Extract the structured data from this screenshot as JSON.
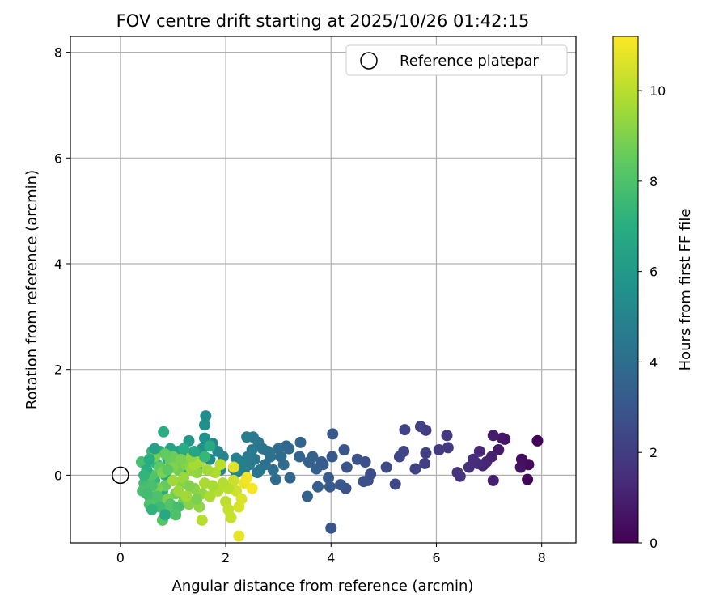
{
  "chart_data": {
    "type": "scatter",
    "title": "FOV centre drift starting at 2025/10/26 01:42:15",
    "xlabel": "Angular distance from reference (arcmin)",
    "ylabel": "Rotation from reference (arcmin)",
    "xlim": [
      -0.95,
      8.65
    ],
    "ylim": [
      -1.28,
      8.3
    ],
    "xticks": [
      "0",
      "2",
      "4",
      "6",
      "8"
    ],
    "xtick_values": [
      0,
      2,
      4,
      6,
      8
    ],
    "yticks": [
      "0",
      "2",
      "4",
      "6",
      "8"
    ],
    "ytick_values": [
      0,
      2,
      4,
      6,
      8
    ],
    "grid": true,
    "legend": {
      "placement": "top-right",
      "entries": [
        "Reference platepar"
      ]
    },
    "reference_point": {
      "x": 0,
      "y": 0
    },
    "colorbar": {
      "label": "Hours from first FF file",
      "range": [
        0,
        11.2
      ],
      "ticks": [
        "0",
        "2",
        "4",
        "6",
        "8",
        "10"
      ],
      "tick_values": [
        0,
        2,
        4,
        6,
        8,
        10
      ],
      "colormap": "viridis"
    },
    "points": [
      {
        "x": 7.92,
        "y": 0.65,
        "h": 0.1
      },
      {
        "x": 7.73,
        "y": -0.08,
        "h": 0.2
      },
      {
        "x": 7.75,
        "y": 0.2,
        "h": 0.3
      },
      {
        "x": 7.62,
        "y": 0.3,
        "h": 0.4
      },
      {
        "x": 7.6,
        "y": 0.15,
        "h": 0.5
      },
      {
        "x": 7.3,
        "y": 0.68,
        "h": 0.6
      },
      {
        "x": 7.25,
        "y": 0.7,
        "h": 0.7
      },
      {
        "x": 7.18,
        "y": 0.48,
        "h": 0.8
      },
      {
        "x": 7.08,
        "y": 0.75,
        "h": 0.9
      },
      {
        "x": 7.08,
        "y": -0.1,
        "h": 1.0
      },
      {
        "x": 7.05,
        "y": 0.35,
        "h": 1.05
      },
      {
        "x": 6.95,
        "y": 0.25,
        "h": 1.1
      },
      {
        "x": 6.88,
        "y": 0.18,
        "h": 1.2
      },
      {
        "x": 6.82,
        "y": 0.45,
        "h": 1.25
      },
      {
        "x": 6.78,
        "y": 0.22,
        "h": 1.3
      },
      {
        "x": 6.7,
        "y": 0.3,
        "h": 1.4
      },
      {
        "x": 6.62,
        "y": 0.15,
        "h": 1.5
      },
      {
        "x": 6.45,
        "y": -0.02,
        "h": 1.6
      },
      {
        "x": 6.4,
        "y": 0.05,
        "h": 1.7
      },
      {
        "x": 6.2,
        "y": 0.75,
        "h": 1.8
      },
      {
        "x": 6.22,
        "y": 0.52,
        "h": 1.85
      },
      {
        "x": 6.05,
        "y": 0.48,
        "h": 1.9
      },
      {
        "x": 5.8,
        "y": 0.85,
        "h": 2.0
      },
      {
        "x": 5.8,
        "y": 0.42,
        "h": 2.05
      },
      {
        "x": 5.78,
        "y": 0.22,
        "h": 2.1
      },
      {
        "x": 5.7,
        "y": 0.92,
        "h": 2.15
      },
      {
        "x": 5.6,
        "y": 0.12,
        "h": 2.2
      },
      {
        "x": 5.4,
        "y": 0.86,
        "h": 2.25
      },
      {
        "x": 5.38,
        "y": 0.45,
        "h": 2.3
      },
      {
        "x": 5.3,
        "y": 0.35,
        "h": 2.35
      },
      {
        "x": 5.22,
        "y": -0.17,
        "h": 2.4
      },
      {
        "x": 5.05,
        "y": 0.15,
        "h": 2.5
      },
      {
        "x": 4.75,
        "y": 0.02,
        "h": 2.6
      },
      {
        "x": 4.7,
        "y": -0.1,
        "h": 2.65
      },
      {
        "x": 4.65,
        "y": 0.25,
        "h": 2.7
      },
      {
        "x": 4.62,
        "y": -0.12,
        "h": 2.75
      },
      {
        "x": 4.5,
        "y": 0.3,
        "h": 2.8
      },
      {
        "x": 4.3,
        "y": 0.15,
        "h": 2.85
      },
      {
        "x": 4.28,
        "y": -0.25,
        "h": 2.9
      },
      {
        "x": 4.25,
        "y": 0.48,
        "h": 2.95
      },
      {
        "x": 4.18,
        "y": -0.18,
        "h": 3.0
      },
      {
        "x": 4.03,
        "y": 0.78,
        "h": 3.05
      },
      {
        "x": 4.0,
        "y": -1.0,
        "h": 2.95
      },
      {
        "x": 4.02,
        "y": 0.35,
        "h": 3.1
      },
      {
        "x": 3.98,
        "y": -0.22,
        "h": 3.15
      },
      {
        "x": 3.95,
        "y": -0.05,
        "h": 3.2
      },
      {
        "x": 3.85,
        "y": 0.2,
        "h": 3.25
      },
      {
        "x": 3.82,
        "y": 0.25,
        "h": 3.3
      },
      {
        "x": 3.75,
        "y": -0.22,
        "h": 3.35
      },
      {
        "x": 3.72,
        "y": 0.12,
        "h": 3.4
      },
      {
        "x": 3.65,
        "y": 0.35,
        "h": 3.45
      },
      {
        "x": 3.58,
        "y": 0.25,
        "h": 3.5
      },
      {
        "x": 3.55,
        "y": -0.4,
        "h": 3.55
      },
      {
        "x": 3.42,
        "y": 0.62,
        "h": 3.6
      },
      {
        "x": 3.4,
        "y": 0.35,
        "h": 3.65
      },
      {
        "x": 3.22,
        "y": -0.05,
        "h": 3.7
      },
      {
        "x": 3.2,
        "y": 0.5,
        "h": 3.75
      },
      {
        "x": 3.15,
        "y": 0.55,
        "h": 3.8
      },
      {
        "x": 3.1,
        "y": 0.2,
        "h": 3.85
      },
      {
        "x": 3.05,
        "y": 0.35,
        "h": 3.9
      },
      {
        "x": 3.0,
        "y": 0.5,
        "h": 3.95
      },
      {
        "x": 2.95,
        "y": -0.08,
        "h": 4.0
      },
      {
        "x": 2.9,
        "y": 0.1,
        "h": 4.05
      },
      {
        "x": 2.85,
        "y": 0.35,
        "h": 4.1
      },
      {
        "x": 2.8,
        "y": 0.45,
        "h": 4.15
      },
      {
        "x": 2.75,
        "y": 0.2,
        "h": 4.2
      },
      {
        "x": 2.7,
        "y": 0.5,
        "h": 4.25
      },
      {
        "x": 2.65,
        "y": 0.1,
        "h": 4.3
      },
      {
        "x": 2.62,
        "y": 0.62,
        "h": 4.35
      },
      {
        "x": 2.6,
        "y": 0.05,
        "h": 4.4
      },
      {
        "x": 2.55,
        "y": 0.3,
        "h": 4.45
      },
      {
        "x": 2.52,
        "y": 0.72,
        "h": 4.5
      },
      {
        "x": 2.5,
        "y": 0.48,
        "h": 4.55
      },
      {
        "x": 2.45,
        "y": 0.2,
        "h": 4.6
      },
      {
        "x": 2.42,
        "y": 0.35,
        "h": 4.65
      },
      {
        "x": 2.4,
        "y": 0.72,
        "h": 4.7
      },
      {
        "x": 2.35,
        "y": 0.08,
        "h": 4.75
      },
      {
        "x": 2.3,
        "y": 0.25,
        "h": 4.8
      },
      {
        "x": 2.2,
        "y": 0.32,
        "h": 4.85
      },
      {
        "x": 2.2,
        "y": 0.05,
        "h": 4.9
      },
      {
        "x": 2.15,
        "y": 0.12,
        "h": 4.95
      },
      {
        "x": 1.95,
        "y": 0.35,
        "h": 5.0
      },
      {
        "x": 1.9,
        "y": 0.1,
        "h": 5.05
      },
      {
        "x": 1.85,
        "y": 0.45,
        "h": 5.1
      },
      {
        "x": 1.75,
        "y": 0.6,
        "h": 5.2
      },
      {
        "x": 1.7,
        "y": 0.3,
        "h": 5.3
      },
      {
        "x": 1.62,
        "y": 1.12,
        "h": 5.4
      },
      {
        "x": 1.6,
        "y": 0.95,
        "h": 5.5
      },
      {
        "x": 1.6,
        "y": 0.7,
        "h": 5.6
      },
      {
        "x": 1.55,
        "y": 0.5,
        "h": 5.7
      },
      {
        "x": 1.5,
        "y": 0.3,
        "h": 5.75
      },
      {
        "x": 1.45,
        "y": 0.15,
        "h": 5.8
      },
      {
        "x": 1.3,
        "y": 0.65,
        "h": 5.9
      },
      {
        "x": 1.25,
        "y": 0.35,
        "h": 6.0
      },
      {
        "x": 1.2,
        "y": 0.1,
        "h": 6.1
      },
      {
        "x": 1.1,
        "y": 0.45,
        "h": 6.2
      },
      {
        "x": 1.05,
        "y": 0.2,
        "h": 6.3
      },
      {
        "x": 1.0,
        "y": -0.1,
        "h": 6.4
      },
      {
        "x": 0.95,
        "y": 0.5,
        "h": 6.5
      },
      {
        "x": 0.9,
        "y": 0.3,
        "h": 6.6
      },
      {
        "x": 0.85,
        "y": 0.0,
        "h": 6.7
      },
      {
        "x": 0.8,
        "y": -0.3,
        "h": 6.8
      },
      {
        "x": 0.82,
        "y": 0.82,
        "h": 7.0
      },
      {
        "x": 0.75,
        "y": 0.45,
        "h": 7.1
      },
      {
        "x": 0.7,
        "y": 0.2,
        "h": 7.2
      },
      {
        "x": 0.65,
        "y": -0.1,
        "h": 7.3
      },
      {
        "x": 0.6,
        "y": 0.45,
        "h": 7.4
      },
      {
        "x": 0.55,
        "y": -0.4,
        "h": 7.5
      },
      {
        "x": 0.5,
        "y": 0.2,
        "h": 7.6
      },
      {
        "x": 0.45,
        "y": -0.15,
        "h": 7.7
      },
      {
        "x": 0.4,
        "y": 0.25,
        "h": 7.8
      },
      {
        "x": 0.42,
        "y": -0.3,
        "h": 7.9
      },
      {
        "x": 0.55,
        "y": -0.55,
        "h": 8.0
      },
      {
        "x": 0.6,
        "y": 0.0,
        "h": 8.1
      },
      {
        "x": 0.7,
        "y": -0.5,
        "h": 8.15
      },
      {
        "x": 0.8,
        "y": -0.85,
        "h": 8.2
      },
      {
        "x": 0.9,
        "y": -0.6,
        "h": 8.3
      },
      {
        "x": 1.0,
        "y": -0.7,
        "h": 8.35
      },
      {
        "x": 0.75,
        "y": 0.15,
        "h": 8.4
      },
      {
        "x": 0.85,
        "y": -0.2,
        "h": 8.5
      },
      {
        "x": 0.95,
        "y": 0.25,
        "h": 8.55
      },
      {
        "x": 1.05,
        "y": -0.35,
        "h": 8.6
      },
      {
        "x": 1.1,
        "y": 0.1,
        "h": 8.7
      },
      {
        "x": 1.2,
        "y": -0.5,
        "h": 8.75
      },
      {
        "x": 0.65,
        "y": 0.35,
        "h": 8.8
      },
      {
        "x": 0.7,
        "y": -0.25,
        "h": 8.85
      },
      {
        "x": 0.8,
        "y": 0.05,
        "h": 8.9
      },
      {
        "x": 0.9,
        "y": -0.45,
        "h": 8.95
      },
      {
        "x": 1.0,
        "y": 0.15,
        "h": 9.0
      },
      {
        "x": 1.15,
        "y": -0.15,
        "h": 9.05
      },
      {
        "x": 1.25,
        "y": 0.2,
        "h": 9.1
      },
      {
        "x": 1.3,
        "y": -0.55,
        "h": 9.15
      },
      {
        "x": 1.4,
        "y": -0.25,
        "h": 9.2
      },
      {
        "x": 1.45,
        "y": 0.05,
        "h": 9.25
      },
      {
        "x": 1.5,
        "y": -0.6,
        "h": 9.3
      },
      {
        "x": 1.55,
        "y": -0.35,
        "h": 9.35
      },
      {
        "x": 1.35,
        "y": 0.1,
        "h": 9.4
      },
      {
        "x": 1.2,
        "y": -0.05,
        "h": 9.45
      },
      {
        "x": 1.1,
        "y": -0.3,
        "h": 9.5
      },
      {
        "x": 1.0,
        "y": -0.1,
        "h": 9.55
      },
      {
        "x": 1.25,
        "y": -0.4,
        "h": 9.6
      },
      {
        "x": 1.4,
        "y": 0.2,
        "h": 9.65
      },
      {
        "x": 1.5,
        "y": 0.25,
        "h": 9.7
      },
      {
        "x": 1.6,
        "y": -0.15,
        "h": 9.75
      },
      {
        "x": 1.7,
        "y": -0.4,
        "h": 9.8
      },
      {
        "x": 1.8,
        "y": 0.05,
        "h": 9.85
      },
      {
        "x": 1.85,
        "y": -0.3,
        "h": 9.9
      },
      {
        "x": 1.55,
        "y": -0.85,
        "h": 9.95
      },
      {
        "x": 1.9,
        "y": 0.2,
        "h": 10.0
      },
      {
        "x": 2.0,
        "y": -0.5,
        "h": 10.1
      },
      {
        "x": 2.05,
        "y": -0.65,
        "h": 10.2
      },
      {
        "x": 2.1,
        "y": -0.8,
        "h": 10.25
      },
      {
        "x": 2.15,
        "y": -0.1,
        "h": 10.3
      },
      {
        "x": 2.2,
        "y": -0.3,
        "h": 10.4
      },
      {
        "x": 2.25,
        "y": -0.6,
        "h": 10.5
      },
      {
        "x": 2.3,
        "y": -0.45,
        "h": 10.6
      },
      {
        "x": 2.15,
        "y": 0.15,
        "h": 10.7
      },
      {
        "x": 2.25,
        "y": -1.15,
        "h": 10.8
      },
      {
        "x": 2.35,
        "y": -0.15,
        "h": 10.9
      },
      {
        "x": 2.4,
        "y": -0.05,
        "h": 11.0
      },
      {
        "x": 2.5,
        "y": -0.25,
        "h": 11.1
      },
      {
        "x": 2.05,
        "y": -0.25,
        "h": 10.0
      },
      {
        "x": 0.6,
        "y": -0.2,
        "h": 7.9
      },
      {
        "x": 0.7,
        "y": -0.4,
        "h": 8.0
      },
      {
        "x": 0.9,
        "y": 0.1,
        "h": 8.3
      },
      {
        "x": 1.0,
        "y": 0.35,
        "h": 8.6
      },
      {
        "x": 1.15,
        "y": 0.3,
        "h": 8.9
      },
      {
        "x": 1.3,
        "y": -0.2,
        "h": 9.0
      },
      {
        "x": 0.75,
        "y": -0.6,
        "h": 7.6
      },
      {
        "x": 0.95,
        "y": -0.55,
        "h": 8.1
      },
      {
        "x": 1.1,
        "y": -0.6,
        "h": 7.8
      },
      {
        "x": 1.35,
        "y": 0.35,
        "h": 9.3
      },
      {
        "x": 1.65,
        "y": 0.1,
        "h": 9.6
      },
      {
        "x": 1.75,
        "y": -0.2,
        "h": 9.7
      },
      {
        "x": 1.95,
        "y": -0.15,
        "h": 9.9
      },
      {
        "x": 0.5,
        "y": 0.1,
        "h": 7.0
      },
      {
        "x": 0.85,
        "y": 0.4,
        "h": 8.45
      },
      {
        "x": 1.45,
        "y": -0.45,
        "h": 8.9
      },
      {
        "x": 1.6,
        "y": 0.35,
        "h": 7.4
      },
      {
        "x": 1.7,
        "y": 0.55,
        "h": 6.8
      },
      {
        "x": 1.4,
        "y": 0.45,
        "h": 6.6
      },
      {
        "x": 1.2,
        "y": 0.5,
        "h": 6.9
      },
      {
        "x": 0.65,
        "y": 0.5,
        "h": 6.3
      },
      {
        "x": 0.55,
        "y": 0.3,
        "h": 6.9
      },
      {
        "x": 0.45,
        "y": 0.0,
        "h": 7.3
      },
      {
        "x": 0.5,
        "y": -0.35,
        "h": 7.7
      },
      {
        "x": 0.6,
        "y": -0.65,
        "h": 7.2
      },
      {
        "x": 0.85,
        "y": -0.75,
        "h": 6.7
      },
      {
        "x": 1.05,
        "y": -0.75,
        "h": 8.0
      }
    ]
  }
}
